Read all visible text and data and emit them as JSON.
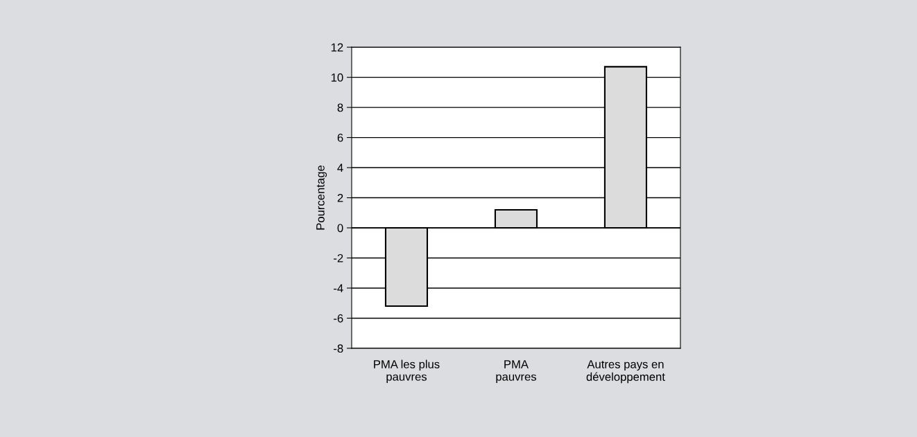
{
  "chart_data": {
    "type": "bar",
    "ylabel": "Pourcentage",
    "categories": [
      "PMA les plus\npauvres",
      "PMA\npauvres",
      "Autres pays en\ndéveloppement"
    ],
    "values": [
      -5.2,
      1.2,
      10.7
    ],
    "color": "#dcdcdc",
    "ylim": [
      -8,
      12
    ],
    "yticks": [
      -8,
      -6,
      -4,
      -2,
      0,
      2,
      4,
      6,
      8,
      10,
      12
    ],
    "grid": "y"
  }
}
